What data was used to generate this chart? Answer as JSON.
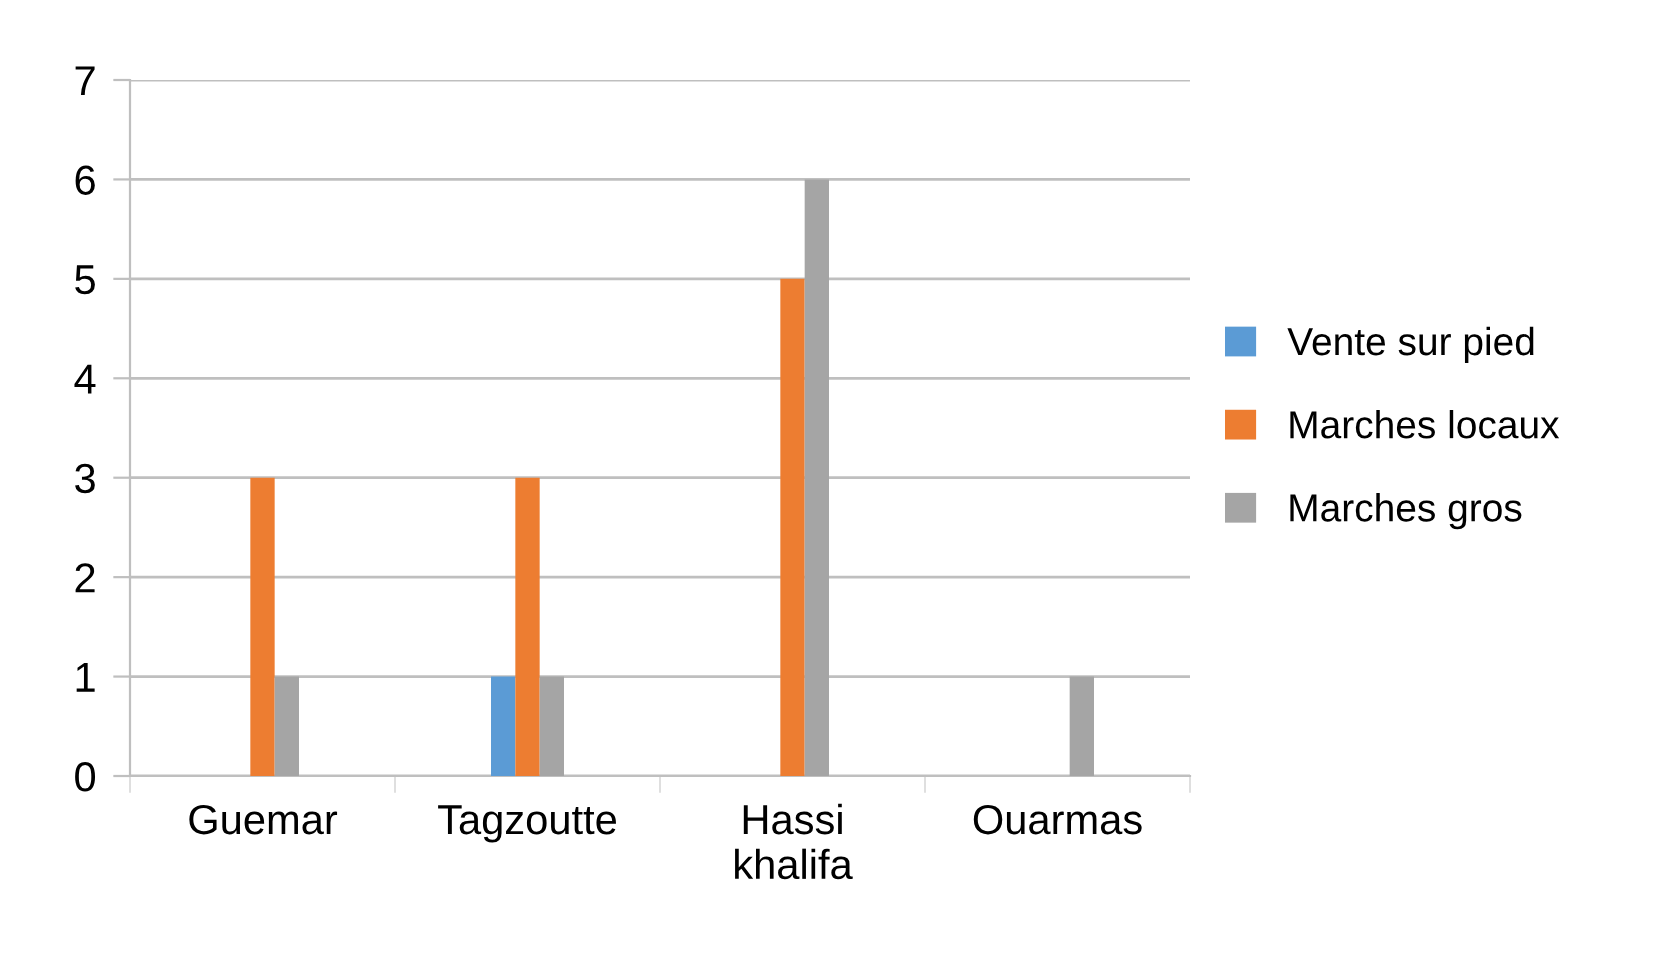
{
  "chart_data": {
    "type": "bar",
    "categories": [
      "Guemar",
      "Tagzoutte",
      "Hassi\nkhalifa",
      "Ouarmas"
    ],
    "series": [
      {
        "name": "Vente sur pied",
        "color": "#5b9bd5",
        "values": [
          0,
          1,
          0,
          0
        ]
      },
      {
        "name": "Marches locaux",
        "color": "#ed7d31",
        "values": [
          3,
          3,
          5,
          0
        ]
      },
      {
        "name": "Marches gros",
        "color": "#a5a5a5",
        "values": [
          1,
          1,
          6,
          1
        ]
      }
    ],
    "ylim": [
      0,
      7
    ],
    "yticks": [
      0,
      1,
      2,
      3,
      4,
      5,
      6,
      7
    ],
    "grid": "y",
    "legend": "right"
  }
}
